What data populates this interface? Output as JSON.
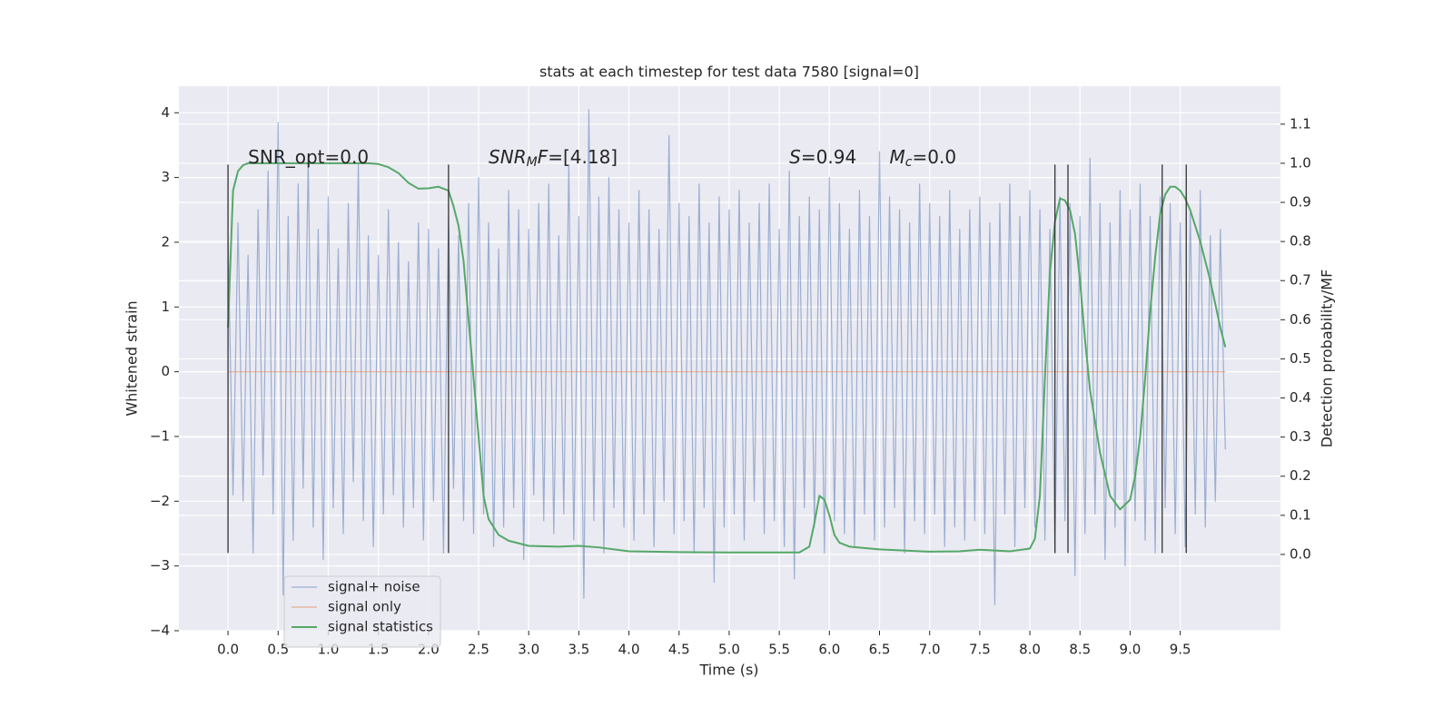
{
  "chart_data": {
    "type": "line",
    "title": "stats at each timestep for test data 7580 [signal=0]",
    "xlabel": "Time (s)",
    "ylabel": "Whitened strain",
    "y2label": "Detection probability/MF",
    "xlim": [
      -0.49,
      10.5
    ],
    "ylim": [
      -4.0,
      4.41
    ],
    "y2lim": [
      -0.195,
      1.197
    ],
    "xticks": [
      {
        "value": 0,
        "label": "0.0"
      },
      0.5,
      {
        "value": 1,
        "label": "1.0"
      },
      1.5,
      {
        "value": 2,
        "label": "2.0"
      },
      2.5,
      {
        "value": 3,
        "label": "3.0"
      },
      3.5,
      {
        "value": 4,
        "label": "4.0"
      },
      4.5,
      {
        "value": 5,
        "label": "5.0"
      },
      5.5,
      {
        "value": 6,
        "label": "6.0"
      },
      6.5,
      {
        "value": 7,
        "label": "7.0"
      },
      7.5,
      {
        "value": 8,
        "label": "8.0"
      },
      8.5,
      {
        "value": 9,
        "label": "9.0"
      },
      9.5
    ],
    "yticks": [
      {
        "value": -4,
        "label": "−4"
      },
      {
        "value": -3,
        "label": "−3"
      },
      {
        "value": -2,
        "label": "−2"
      },
      {
        "value": -1,
        "label": "−1"
      },
      0,
      1,
      2,
      3,
      4
    ],
    "y2ticks": [
      {
        "value": 0,
        "label": "0.0"
      },
      0.1,
      0.2,
      0.3,
      0.4,
      0.5,
      0.6,
      0.7,
      0.8,
      0.9,
      {
        "value": 1,
        "label": "1.0"
      },
      1.1
    ],
    "grid": true,
    "legend": "lower left",
    "series": [
      {
        "name": "signal+ noise",
        "color": "#4c72b0",
        "x": [
          0,
          0.05,
          0.1,
          0.15,
          0.2,
          0.25,
          0.3,
          0.35,
          0.4,
          0.45,
          0.5,
          0.55,
          0.6,
          0.65,
          0.7,
          0.75,
          0.8,
          0.85,
          0.9,
          0.95,
          1,
          1.05,
          1.1,
          1.15,
          1.2,
          1.25,
          1.3,
          1.35,
          1.4,
          1.45,
          1.5,
          1.55,
          1.6,
          1.65,
          1.7,
          1.75,
          1.8,
          1.85,
          1.9,
          1.95,
          2,
          2.05,
          2.1,
          2.15,
          2.2,
          2.25,
          2.3,
          2.35,
          2.4,
          2.45,
          2.5,
          2.55,
          2.6,
          2.65,
          2.7,
          2.75,
          2.8,
          2.85,
          2.9,
          2.95,
          3,
          3.05,
          3.1,
          3.15,
          3.2,
          3.25,
          3.3,
          3.35,
          3.4,
          3.45,
          3.5,
          3.55,
          3.6,
          3.65,
          3.7,
          3.75,
          3.8,
          3.85,
          3.9,
          3.95,
          4,
          4.05,
          4.1,
          4.15,
          4.2,
          4.25,
          4.3,
          4.35,
          4.4,
          4.45,
          4.5,
          4.55,
          4.6,
          4.65,
          4.7,
          4.75,
          4.8,
          4.85,
          4.9,
          4.95,
          5,
          5.05,
          5.1,
          5.15,
          5.2,
          5.25,
          5.3,
          5.35,
          5.4,
          5.45,
          5.5,
          5.55,
          5.6,
          5.65,
          5.7,
          5.75,
          5.8,
          5.85,
          5.9,
          5.95,
          6,
          6.05,
          6.1,
          6.15,
          6.2,
          6.25,
          6.3,
          6.35,
          6.4,
          6.45,
          6.5,
          6.55,
          6.6,
          6.65,
          6.7,
          6.75,
          6.8,
          6.85,
          6.9,
          6.95,
          7,
          7.05,
          7.1,
          7.15,
          7.2,
          7.25,
          7.3,
          7.35,
          7.4,
          7.45,
          7.5,
          7.55,
          7.6,
          7.65,
          7.7,
          7.75,
          7.8,
          7.85,
          7.9,
          7.95,
          8,
          8.05,
          8.1,
          8.15,
          8.2,
          8.25,
          8.3,
          8.35,
          8.4,
          8.45,
          8.5,
          8.55,
          8.6,
          8.65,
          8.7,
          8.75,
          8.8,
          8.85,
          8.9,
          8.95,
          9,
          9.05,
          9.1,
          9.15,
          9.2,
          9.25,
          9.3,
          9.35,
          9.4,
          9.45,
          9.5,
          9.55,
          9.6,
          9.65,
          9.7,
          9.75,
          9.8,
          9.85,
          9.9,
          9.95
        ],
        "values": [
          2.1,
          -1.9,
          2.3,
          -2.0,
          1.8,
          -2.8,
          2.5,
          -1.6,
          3.1,
          -2.2,
          3.85,
          -3.45,
          2.4,
          -2.6,
          2.9,
          -1.8,
          3.3,
          -2.4,
          2.2,
          -2.9,
          2.7,
          -2.1,
          1.9,
          -2.5,
          2.6,
          -1.7,
          3.2,
          -2.3,
          2.1,
          -2.7,
          1.8,
          -2.2,
          2.5,
          -1.9,
          2.0,
          -2.4,
          1.7,
          -2.1,
          2.3,
          -2.6,
          2.2,
          -2.0,
          1.9,
          -2.8,
          2.4,
          -1.8,
          2.1,
          -2.3,
          2.6,
          -2.5,
          3.0,
          -2.2,
          2.3,
          -2.7,
          1.9,
          -2.4,
          2.8,
          -2.1,
          2.5,
          -2.9,
          2.2,
          -1.9,
          2.6,
          -2.3,
          2.9,
          -2.5,
          2.1,
          -2.2,
          3.2,
          -2.6,
          2.4,
          -3.5,
          4.05,
          -2.3,
          2.7,
          -2.8,
          3.0,
          -2.1,
          2.5,
          -2.4,
          2.3,
          -2.6,
          2.8,
          -2.2,
          2.5,
          -2.7,
          2.2,
          -2.0,
          3.65,
          -2.5,
          2.6,
          -2.3,
          2.4,
          -2.8,
          2.9,
          -2.1,
          2.3,
          -3.25,
          2.7,
          -2.4,
          2.5,
          -2.2,
          2.8,
          -2.6,
          2.3,
          -2.0,
          2.6,
          -2.5,
          2.9,
          -2.3,
          2.2,
          -2.7,
          3.1,
          -3.2,
          2.4,
          -2.1,
          2.7,
          -2.4,
          2.5,
          -2.8,
          3.0,
          -2.3,
          2.6,
          -2.5,
          2.2,
          -2.7,
          2.8,
          -2.2,
          2.4,
          -2.6,
          3.4,
          -2.4,
          2.7,
          -2.1,
          2.5,
          -2.8,
          2.3,
          -2.3,
          2.9,
          -2.5,
          2.6,
          -2.2,
          2.4,
          -2.7,
          2.8,
          -2.4,
          2.2,
          -2.6,
          2.5,
          -2.3,
          2.7,
          -2.5,
          2.3,
          -3.6,
          2.6,
          -2.2,
          2.9,
          -2.7,
          2.4,
          -2.1,
          2.8,
          -2.4,
          2.5,
          -2.6,
          2.2,
          -2.8,
          2.7,
          -2.3,
          2.6,
          -3.15,
          2.4,
          -2.5,
          3.3,
          -2.2,
          2.6,
          -2.9,
          2.3,
          -2.4,
          2.8,
          -3.0,
          2.5,
          -2.3,
          2.9,
          -2.6,
          2.4,
          -2.8,
          2.7,
          -2.1,
          2.6,
          -2.5,
          2.3,
          -2.7,
          2.5,
          -2.2,
          2.8,
          -2.4,
          2.1,
          -2.0,
          2.2,
          -1.2
        ]
      },
      {
        "name": "signal only",
        "color": "#dd8452",
        "x": [
          0,
          9.95
        ],
        "values": [
          0,
          0
        ]
      },
      {
        "name": "signal statistics",
        "color": "#55a868",
        "axis": "y2",
        "x": [
          0,
          0.05,
          0.1,
          0.15,
          0.2,
          0.3,
          0.5,
          1.0,
          1.4,
          1.5,
          1.6,
          1.7,
          1.8,
          1.9,
          2.0,
          2.1,
          2.2,
          2.25,
          2.3,
          2.35,
          2.4,
          2.45,
          2.5,
          2.55,
          2.6,
          2.7,
          2.8,
          3.0,
          3.3,
          3.5,
          3.7,
          4.0,
          4.5,
          5.0,
          5.5,
          5.7,
          5.8,
          5.85,
          5.9,
          5.95,
          6.0,
          6.05,
          6.1,
          6.2,
          6.5,
          7.0,
          7.3,
          7.5,
          7.8,
          8.0,
          8.05,
          8.1,
          8.15,
          8.2,
          8.25,
          8.3,
          8.35,
          8.4,
          8.45,
          8.5,
          8.55,
          8.6,
          8.7,
          8.8,
          8.9,
          9.0,
          9.05,
          9.1,
          9.15,
          9.2,
          9.25,
          9.3,
          9.35,
          9.4,
          9.45,
          9.5,
          9.55,
          9.6,
          9.7,
          9.8,
          9.9,
          9.95
        ],
        "values": [
          0.58,
          0.93,
          0.98,
          0.995,
          1.0,
          1.0,
          1.0,
          1.0,
          1.0,
          0.998,
          0.99,
          0.975,
          0.95,
          0.935,
          0.936,
          0.94,
          0.93,
          0.89,
          0.84,
          0.75,
          0.6,
          0.45,
          0.3,
          0.15,
          0.09,
          0.05,
          0.035,
          0.022,
          0.02,
          0.022,
          0.018,
          0.008,
          0.006,
          0.005,
          0.005,
          0.005,
          0.02,
          0.08,
          0.15,
          0.14,
          0.1,
          0.05,
          0.03,
          0.02,
          0.013,
          0.007,
          0.008,
          0.012,
          0.008,
          0.015,
          0.04,
          0.15,
          0.45,
          0.72,
          0.85,
          0.91,
          0.905,
          0.88,
          0.82,
          0.7,
          0.55,
          0.42,
          0.26,
          0.15,
          0.115,
          0.14,
          0.2,
          0.3,
          0.45,
          0.62,
          0.76,
          0.87,
          0.92,
          0.94,
          0.94,
          0.93,
          0.91,
          0.88,
          0.8,
          0.7,
          0.58,
          0.53
        ]
      }
    ],
    "vlines": {
      "x": [
        0,
        2.2,
        8.25,
        8.38,
        9.32,
        9.56
      ],
      "ymin": -2.8,
      "ymax": 3.2,
      "color": "#333333"
    },
    "annotations": [
      {
        "x": 0.2,
        "y": 3.3,
        "parts": [
          {
            "text": "SNR_opt=0.0"
          }
        ]
      },
      {
        "x": 2.6,
        "y": 3.3,
        "parts": [
          {
            "text": "SNR",
            "style": "italic"
          },
          {
            "text": "M",
            "style": "sub"
          },
          {
            "text": "F",
            "style": "italic"
          },
          {
            "text": "=[4.18]"
          }
        ]
      },
      {
        "x": 5.6,
        "y": 3.3,
        "parts": [
          {
            "text": "S",
            "style": "italic"
          },
          {
            "text": "=0.94"
          }
        ]
      },
      {
        "x": 6.6,
        "y": 3.3,
        "parts": [
          {
            "text": "M",
            "style": "italic"
          },
          {
            "text": "c",
            "style": "sub"
          },
          {
            "text": "=0.0"
          }
        ]
      }
    ]
  }
}
